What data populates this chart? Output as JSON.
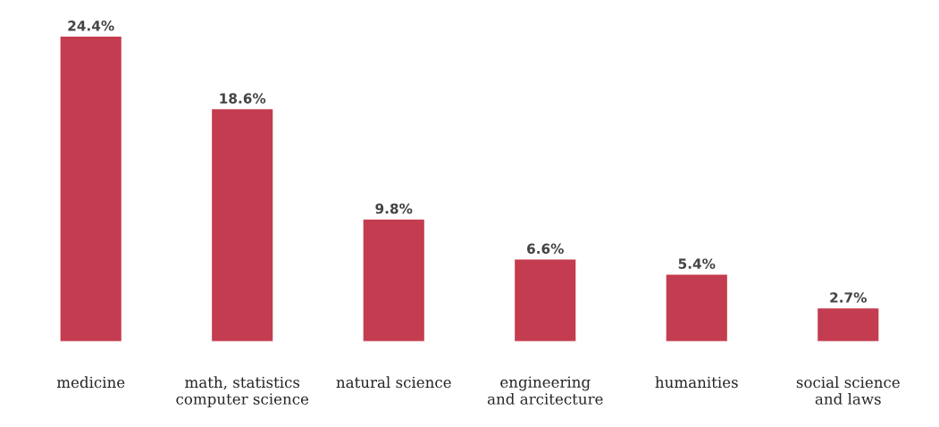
{
  "chart_data": {
    "type": "bar",
    "categories": [
      "medicine",
      "math, statistics\ncomputer science",
      "natural science",
      "engineering\nand arcitecture",
      "humanities",
      "social science\nand laws"
    ],
    "values": [
      24.4,
      18.6,
      9.8,
      6.6,
      5.4,
      2.7
    ],
    "value_labels": [
      "24.4%",
      "18.6%",
      "9.8%",
      "6.6%",
      "5.4%",
      "2.7%"
    ],
    "color": "#c43c4f",
    "grid": false,
    "legend": false
  }
}
